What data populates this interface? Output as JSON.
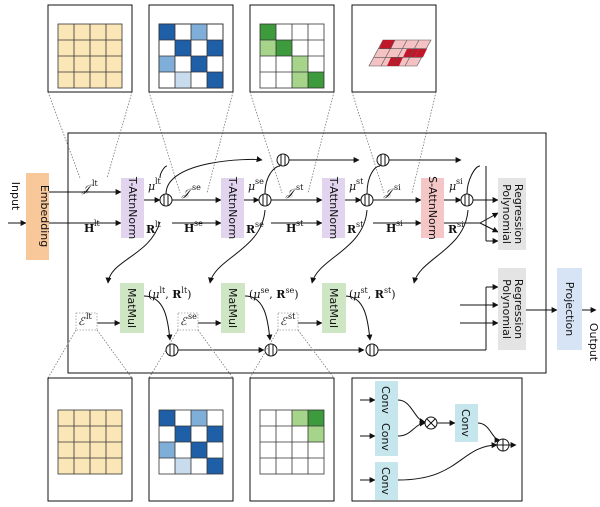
{
  "io": {
    "input": "Input",
    "output": "Output",
    "embedding": "Embedding",
    "projection": "Projection"
  },
  "blocks": {
    "tattn_1": "T-AttnNorm",
    "tattn_2": "T-AttnNorm",
    "tattn_3": "T-AttnNorm",
    "sattn": "S-AttnNorm",
    "matmul_1": "MatMul",
    "matmul_2": "MatMul",
    "matmul_3": "MatMul",
    "poly_top_1": "Polynomial",
    "poly_top_2": "Regression",
    "poly_bot_1": "Polynomial",
    "poly_bot_2": "Regression"
  },
  "conv": {
    "c1": "Conv",
    "c2": "Conv",
    "c3": "Conv",
    "c4": "Conv"
  },
  "symbols": {
    "I": "𝒥",
    "E": "ℰ",
    "H": "H",
    "R": "R",
    "mu": "μ",
    "lt": "lt",
    "se": "se",
    "st": "st",
    "si": "si"
  },
  "colors": {
    "embedding": "#f8c79a",
    "attn": "#e2d4ef",
    "sattn": "#f5c6c6",
    "matmul": "#cfe6c4",
    "poly": "#e4e4e4",
    "projection": "#d7e4f6",
    "conv": "#c5e6ec",
    "yellow": "#fbe6b8",
    "blue_dark": "#1f5fa8",
    "blue_mid": "#7faed8",
    "blue_light": "#c9dcee",
    "green_dark": "#3d9a3d",
    "green_light": "#a6d48a",
    "red_dark": "#c0182a",
    "red_light": "#f4c2c2"
  }
}
